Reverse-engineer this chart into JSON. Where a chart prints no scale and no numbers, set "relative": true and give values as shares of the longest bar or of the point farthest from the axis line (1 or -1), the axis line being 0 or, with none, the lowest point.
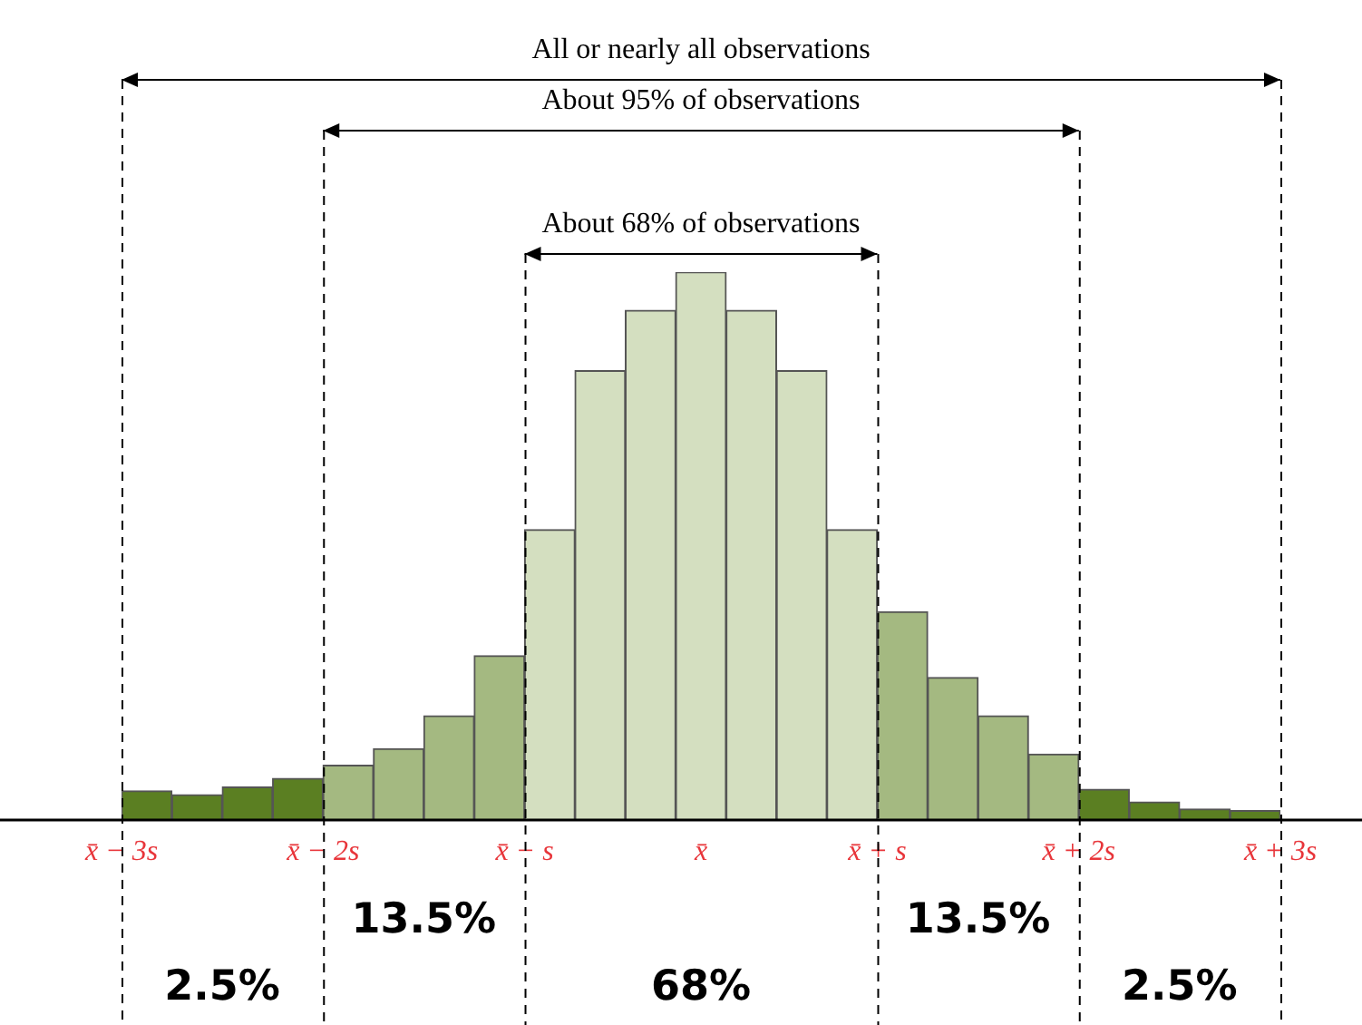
{
  "chart_data": {
    "type": "bar",
    "relative": true,
    "categories": [
      null,
      null,
      null,
      null,
      null,
      null,
      null,
      null,
      null,
      null,
      null,
      null,
      null,
      null,
      null,
      null,
      null,
      null,
      null,
      null,
      null,
      null,
      null
    ],
    "values": [
      0.053,
      0.046,
      0.06,
      0.076,
      0.1,
      0.13,
      0.19,
      0.3,
      0.53,
      0.82,
      0.93,
      1,
      0.93,
      0.82,
      0.53,
      0.38,
      0.26,
      0.19,
      0.12,
      0.056,
      0.033,
      0.02,
      0.017
    ],
    "colors": [
      "#5b7f22",
      "#5b7f22",
      "#5b7f22",
      "#5b7f22",
      "#a4b981",
      "#a4b981",
      "#a4b981",
      "#a4b981",
      "#d4dfc0",
      "#d4dfc0",
      "#d4dfc0",
      "#d4dfc0",
      "#d4dfc0",
      "#d4dfc0",
      "#d4dfc0",
      "#a4b981",
      "#a4b981",
      "#a4b981",
      "#a4b981",
      "#5b7f22",
      "#5b7f22",
      "#5b7f22",
      "#5b7f22"
    ],
    "annotations": [
      "All or nearly all observations",
      "About 95% of observations",
      "About 68% of observations",
      "x̄ − 3s",
      "x̄ − 2s",
      "x̄ − s",
      "x̄",
      "x̄ + s",
      "x̄ + 2s",
      "x̄ + 3s",
      "2.5%",
      "13.5%",
      "68%",
      "13.5%",
      "2.5%"
    ],
    "grid": false,
    "legend": false
  }
}
